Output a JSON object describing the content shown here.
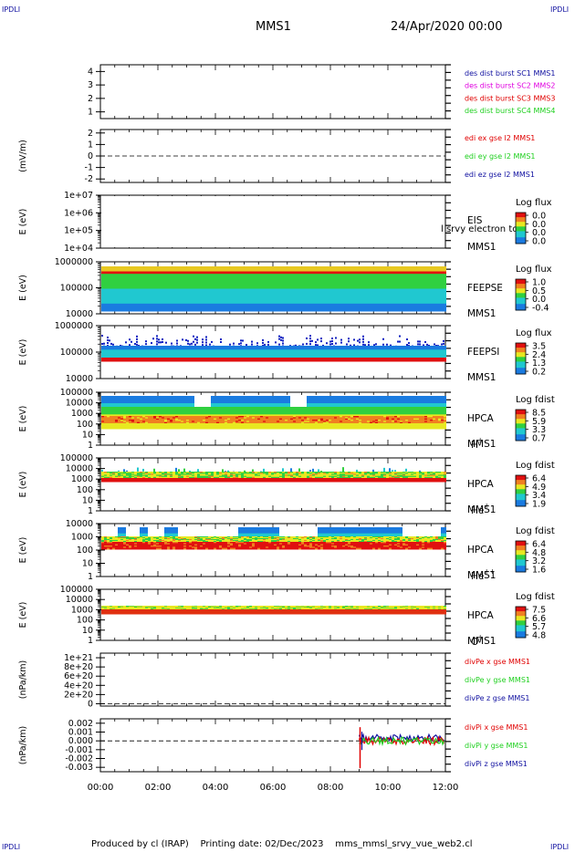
{
  "corners": {
    "tl": "IPDLI",
    "tr": "IPDLI",
    "bl": "IPDLI",
    "br": "IPDLI"
  },
  "header": {
    "mission": "MMS1",
    "date": "24/Apr/2020 00:00"
  },
  "footer": {
    "produced_by": "Produced by cl (IRAP)",
    "printing_date": "Printing date: 02/Dec/2023",
    "script": "mms_mmsl_srvy_vue_web2.cl"
  },
  "colors": {
    "blue": "#1010a0",
    "magenta": "#e000e0",
    "red": "#e00000",
    "green": "#20d020"
  },
  "time_axis": {
    "ticks": [
      "00:00",
      "02:00",
      "04:00",
      "06:00",
      "08:00",
      "10:00",
      "12:00"
    ],
    "range_hours": [
      0,
      12
    ]
  },
  "chart_data": [
    {
      "type": "line",
      "id": "des-dist",
      "ylabel": "",
      "ylim": [
        0.5,
        4.5
      ],
      "yticks": [
        "4",
        "3",
        "2",
        "1"
      ],
      "legend": [
        {
          "text": "des dist burst SC1 MMS1",
          "color": "#1010a0"
        },
        {
          "text": "des dist burst SC2 MMS2",
          "color": "#e000e0"
        },
        {
          "text": "des dist burst SC3 MMS3",
          "color": "#e00000"
        },
        {
          "text": "des dist burst SC4 MMS4",
          "color": "#20d020"
        }
      ]
    },
    {
      "type": "line",
      "id": "edi-efield",
      "ylabel": "(mV/m)",
      "ylim": [
        -2.3,
        2.3
      ],
      "yticks": [
        "2",
        "1",
        "0",
        "-1",
        "-2"
      ],
      "zero_line": true,
      "legend": [
        {
          "text": "edi ex gse l2 MMS1",
          "color": "#e00000"
        },
        {
          "text": "edi ey gse l2 MMS1",
          "color": "#20d020"
        },
        {
          "text": "edi ez gse l2 MMS1",
          "color": "#1010a0"
        }
      ]
    },
    {
      "type": "heatmap",
      "id": "eis",
      "ylabel": "E (eV)",
      "yticks": [
        "1e+07",
        "1e+06",
        "1e+05",
        "1e+04"
      ],
      "instrument": "EIS",
      "spacecraft": "MMS1",
      "overlay": "l srvy electron to",
      "colorbar": {
        "title": "Log flux",
        "ticks": [
          "0.0",
          "0.0",
          "0.0",
          "0.0"
        ]
      }
    },
    {
      "type": "heatmap",
      "id": "feeps-e",
      "ylabel": "E (eV)",
      "yticks": [
        "1000000",
        "100000",
        "10000"
      ],
      "instrument": "FEEPSE",
      "spacecraft": "MMS1",
      "colorbar": {
        "title": "Log flux",
        "ticks": [
          "1.0",
          "0.5",
          "0.0",
          "-0.4"
        ]
      }
    },
    {
      "type": "heatmap",
      "id": "feeps-i",
      "ylabel": "E (eV)",
      "yticks": [
        "1000000",
        "100000",
        "10000"
      ],
      "instrument": "FEEPSI",
      "spacecraft": "MMS1",
      "colorbar": {
        "title": "Log flux",
        "ticks": [
          "3.5",
          "2.4",
          "1.3",
          "0.2"
        ]
      }
    },
    {
      "type": "heatmap",
      "id": "hpca-h",
      "ylabel": "E (eV)",
      "yticks": [
        "100000",
        "10000",
        "1000",
        "100",
        "10",
        "1"
      ],
      "instrument": "HPCA",
      "spacecraft": "MMS1",
      "species": "H",
      "charge": "+",
      "colorbar": {
        "title": "Log fdist",
        "ticks": [
          "8.5",
          "5.9",
          "3.3",
          "0.7"
        ]
      }
    },
    {
      "type": "heatmap",
      "id": "hpca-he",
      "ylabel": "E (eV)",
      "yticks": [
        "100000",
        "10000",
        "1000",
        "100",
        "10",
        "1"
      ],
      "instrument": "HPCA",
      "spacecraft": "MMS1",
      "species": "He",
      "charge": "+",
      "colorbar": {
        "title": "Log fdist",
        "ticks": [
          "6.4",
          "4.9",
          "3.4",
          "1.9"
        ]
      }
    },
    {
      "type": "heatmap",
      "id": "hpca-he2",
      "ylabel": "E (eV)",
      "yticks": [
        "10000",
        "1000",
        "100",
        "10",
        "1"
      ],
      "instrument": "HPCA",
      "spacecraft": "MMS1",
      "species": "He",
      "charge": "++",
      "colorbar": {
        "title": "Log fdist",
        "ticks": [
          "6.4",
          "4.8",
          "3.2",
          "1.6"
        ]
      }
    },
    {
      "type": "heatmap",
      "id": "hpca-o",
      "ylabel": "E (eV)",
      "yticks": [
        "100000",
        "10000",
        "1000",
        "100",
        "10",
        "1"
      ],
      "instrument": "HPCA",
      "spacecraft": "MMS1",
      "species": "O",
      "charge": "+",
      "colorbar": {
        "title": "Log fdist",
        "ticks": [
          "7.5",
          "6.6",
          "5.7",
          "4.8"
        ]
      }
    },
    {
      "type": "line",
      "id": "divpe",
      "ylabel": "(nPa/km)",
      "ylim": [
        -5e+19,
        1.1e+21
      ],
      "yticks": [
        "1e+21",
        "8e+20",
        "6e+20",
        "4e+20",
        "2e+20",
        "0"
      ],
      "zero_line": true,
      "legend": [
        {
          "text": "divPe x gse MMS1",
          "color": "#e00000"
        },
        {
          "text": "divPe y gse MMS1",
          "color": "#20d020"
        },
        {
          "text": "divPe z gse MMS1",
          "color": "#1010a0"
        }
      ]
    },
    {
      "type": "line",
      "id": "divpi",
      "ylabel": "(nPa/km)",
      "ylim": [
        -0.0035,
        0.0025
      ],
      "yticks": [
        "0.002",
        "0.001",
        "0.000",
        "-0.001",
        "-0.002",
        "-0.003"
      ],
      "zero_line": true,
      "legend": [
        {
          "text": "divPi x gse MMS1",
          "color": "#e00000"
        },
        {
          "text": "divPi y gse MMS1",
          "color": "#20d020"
        },
        {
          "text": "divPi z gse MMS1",
          "color": "#1010a0"
        }
      ]
    }
  ]
}
